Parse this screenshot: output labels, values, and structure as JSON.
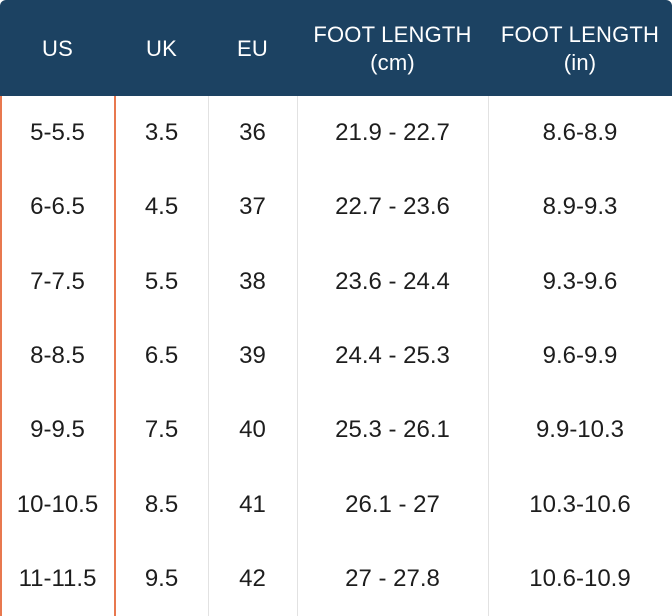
{
  "table": {
    "headers": {
      "us": "US",
      "uk": "UK",
      "eu": "EU",
      "cm_line1": "FOOT LENGTH",
      "cm_line2": "(cm)",
      "in_line1": "FOOT LENGTH",
      "in_line2": "(in)"
    },
    "rows": [
      {
        "us": "5-5.5",
        "uk": "3.5",
        "eu": "36",
        "cm": "21.9 - 22.7",
        "in": "8.6-8.9"
      },
      {
        "us": "6-6.5",
        "uk": "4.5",
        "eu": "37",
        "cm": "22.7 - 23.6",
        "in": "8.9-9.3"
      },
      {
        "us": "7-7.5",
        "uk": "5.5",
        "eu": "38",
        "cm": "23.6 - 24.4",
        "in": "9.3-9.6"
      },
      {
        "us": "8-8.5",
        "uk": "6.5",
        "eu": "39",
        "cm": "24.4 - 25.3",
        "in": "9.6-9.9"
      },
      {
        "us": "9-9.5",
        "uk": "7.5",
        "eu": "40",
        "cm": "25.3 - 26.1",
        "in": "9.9-10.3"
      },
      {
        "us": "10-10.5",
        "uk": "8.5",
        "eu": "41",
        "cm": "26.1 - 27",
        "in": "10.3-10.6"
      },
      {
        "us": "11-11.5",
        "uk": "9.5",
        "eu": "42",
        "cm": "27 - 27.8",
        "in": "10.6-10.9"
      }
    ]
  },
  "colors": {
    "header_bg": "#1c4262",
    "accent": "#e8784f",
    "divider": "#e2e2e2",
    "text": "#1d1d1d"
  }
}
